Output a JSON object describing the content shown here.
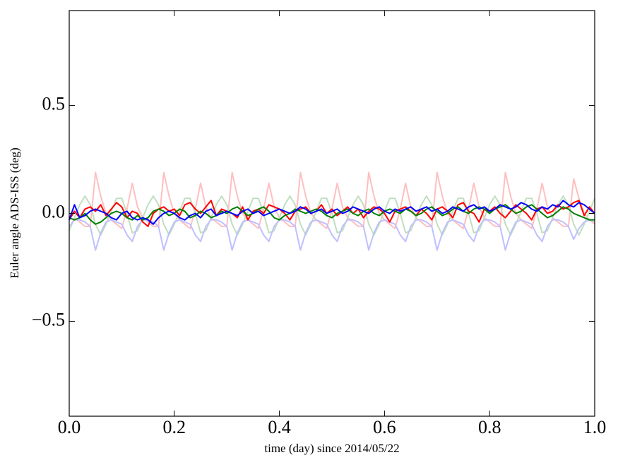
{
  "chart_data": {
    "type": "line",
    "xlabel": "time (day) since 2014/05/22",
    "ylabel": "Euler angle ADS-ISS (deg)",
    "xlim": [
      0,
      1
    ],
    "ylim": [
      -0.94,
      0.94
    ],
    "xticks": [
      {
        "value": 0,
        "label": "0.0"
      },
      0.2,
      0.4,
      0.6,
      0.8,
      {
        "value": 1,
        "label": "1.0"
      }
    ],
    "yticks": [
      {
        "value": -0.5,
        "label": "−0.5"
      },
      {
        "value": 0,
        "label": "0.0"
      },
      0.5
    ],
    "grid": false,
    "x": [
      0,
      0.01,
      0.02,
      0.03,
      0.04,
      0.05,
      0.06,
      0.07,
      0.08,
      0.09,
      0.1,
      0.11,
      0.12,
      0.13,
      0.14,
      0.15,
      0.16,
      0.17,
      0.18,
      0.19,
      0.2,
      0.21,
      0.22,
      0.23,
      0.24,
      0.25,
      0.26,
      0.27,
      0.28,
      0.29,
      0.3,
      0.31,
      0.32,
      0.33,
      0.34,
      0.35,
      0.36,
      0.37,
      0.38,
      0.39,
      0.4,
      0.41,
      0.42,
      0.43,
      0.44,
      0.45,
      0.46,
      0.47,
      0.48,
      0.49,
      0.5,
      0.51,
      0.52,
      0.53,
      0.54,
      0.55,
      0.56,
      0.57,
      0.58,
      0.59,
      0.6,
      0.61,
      0.62,
      0.63,
      0.64,
      0.65,
      0.66,
      0.67,
      0.68,
      0.69,
      0.7,
      0.71,
      0.72,
      0.73,
      0.74,
      0.75,
      0.76,
      0.77,
      0.78,
      0.79,
      0.8,
      0.81,
      0.82,
      0.83,
      0.84,
      0.85,
      0.86,
      0.87,
      0.88,
      0.89,
      0.9,
      0.91,
      0.92,
      0.93,
      0.94,
      0.95,
      0.96,
      0.97,
      0.98,
      0.99,
      1
    ],
    "series": [
      {
        "color": "#ffbfbf",
        "values": [
          -0.08,
          -0.02,
          -0.04,
          -0.06,
          -0.06,
          0.19,
          0.08,
          0.0,
          -0.03,
          -0.05,
          -0.07,
          0.02,
          0.14,
          0.03,
          -0.02,
          -0.04,
          -0.06,
          -0.06,
          0.19,
          0.08,
          0.0,
          -0.03,
          -0.05,
          -0.07,
          0.02,
          0.14,
          0.03,
          -0.02,
          -0.04,
          -0.06,
          -0.06,
          0.19,
          0.08,
          0.0,
          -0.03,
          -0.05,
          -0.07,
          0.02,
          0.14,
          0.03,
          -0.02,
          -0.04,
          -0.06,
          -0.06,
          0.19,
          0.08,
          0.0,
          -0.03,
          -0.05,
          -0.07,
          0.02,
          0.14,
          0.03,
          -0.02,
          -0.04,
          -0.06,
          -0.06,
          0.19,
          0.08,
          0.0,
          -0.03,
          -0.05,
          -0.07,
          0.02,
          0.14,
          0.03,
          -0.02,
          -0.04,
          -0.06,
          -0.06,
          0.19,
          0.08,
          0.0,
          -0.03,
          -0.05,
          -0.07,
          0.02,
          0.14,
          0.03,
          -0.02,
          -0.04,
          -0.06,
          -0.06,
          0.19,
          0.08,
          0.0,
          -0.03,
          -0.05,
          -0.07,
          0.02,
          0.14,
          0.03,
          -0.02,
          -0.04,
          -0.06,
          -0.06,
          0.16,
          0.07,
          0.0,
          -0.03,
          -0.05
        ]
      },
      {
        "color": "#bfdfbf",
        "values": [
          -0.08,
          -0.02,
          0.04,
          0.08,
          0.04,
          -0.05,
          -0.1,
          -0.05,
          0.01,
          0.07,
          0.07,
          0.0,
          -0.09,
          -0.08,
          -0.02,
          0.04,
          0.08,
          0.04,
          -0.05,
          -0.1,
          -0.05,
          0.01,
          0.07,
          0.07,
          0.0,
          -0.09,
          -0.08,
          -0.02,
          0.04,
          0.08,
          0.04,
          -0.05,
          -0.1,
          -0.05,
          0.01,
          0.07,
          0.07,
          0.0,
          -0.09,
          -0.08,
          -0.02,
          0.04,
          0.08,
          0.04,
          -0.05,
          -0.1,
          -0.05,
          0.01,
          0.07,
          0.07,
          0.0,
          -0.09,
          -0.08,
          -0.02,
          0.04,
          0.08,
          0.04,
          -0.05,
          -0.1,
          -0.05,
          0.01,
          0.07,
          0.07,
          0.0,
          -0.09,
          -0.08,
          -0.02,
          0.04,
          0.08,
          0.04,
          -0.05,
          -0.1,
          -0.05,
          0.01,
          0.07,
          0.07,
          0.0,
          -0.09,
          -0.08,
          -0.02,
          0.04,
          0.08,
          0.04,
          -0.05,
          -0.1,
          -0.05,
          0.01,
          0.07,
          0.07,
          0.0,
          -0.09,
          -0.08,
          -0.02,
          0.04,
          0.08,
          0.04,
          -0.05,
          -0.1,
          -0.05,
          0.01,
          0.07
        ]
      },
      {
        "color": "#bfbfff",
        "values": [
          -0.06,
          -0.03,
          -0.03,
          -0.04,
          -0.06,
          -0.17,
          -0.09,
          -0.04,
          -0.03,
          -0.04,
          -0.05,
          -0.1,
          -0.13,
          -0.06,
          -0.03,
          -0.03,
          -0.04,
          -0.06,
          -0.17,
          -0.09,
          -0.04,
          -0.03,
          -0.04,
          -0.05,
          -0.1,
          -0.13,
          -0.06,
          -0.03,
          -0.03,
          -0.04,
          -0.06,
          -0.17,
          -0.09,
          -0.04,
          -0.03,
          -0.04,
          -0.05,
          -0.1,
          -0.13,
          -0.06,
          -0.03,
          -0.03,
          -0.04,
          -0.06,
          -0.17,
          -0.09,
          -0.04,
          -0.03,
          -0.04,
          -0.05,
          -0.1,
          -0.13,
          -0.06,
          -0.03,
          -0.03,
          -0.04,
          -0.06,
          -0.17,
          -0.09,
          -0.04,
          -0.03,
          -0.04,
          -0.05,
          -0.1,
          -0.13,
          -0.06,
          -0.03,
          -0.03,
          -0.04,
          -0.06,
          -0.17,
          -0.09,
          -0.04,
          -0.03,
          -0.04,
          -0.05,
          -0.1,
          -0.13,
          -0.06,
          -0.03,
          -0.03,
          -0.04,
          -0.06,
          -0.17,
          -0.09,
          -0.04,
          -0.03,
          -0.04,
          -0.05,
          -0.1,
          -0.13,
          -0.06,
          -0.03,
          -0.03,
          -0.04,
          -0.06,
          -0.12,
          -0.07,
          -0.04,
          -0.03,
          -0.04
        ]
      },
      {
        "color": "#ff0000",
        "values": [
          -0.03,
          0.01,
          -0.02,
          0.02,
          0.03,
          0.01,
          0.04,
          -0.01,
          0.02,
          0.05,
          0.03,
          -0.02,
          0.01,
          0.0,
          -0.04,
          -0.06,
          0.0,
          0.02,
          0.03,
          0.01,
          0.02,
          -0.01,
          0.04,
          0.05,
          0.02,
          0.0,
          0.03,
          0.06,
          -0.01,
          0.02,
          0.01,
          0.0,
          -0.02,
          0.03,
          -0.03,
          0.01,
          0.02,
          0.0,
          0.04,
          0.03,
          0.02,
          0.0,
          -0.03,
          0.01,
          0.02,
          0.03,
          0.0,
          0.01,
          0.04,
          0.0,
          0.02,
          -0.01,
          0.01,
          0.03,
          0.0,
          0.02,
          -0.02,
          0.01,
          0.03,
          0.02,
          0.0,
          -0.04,
          0.01,
          0.02,
          0.03,
          0.01,
          -0.01,
          0.02,
          0.0,
          -0.03,
          0.02,
          0.03,
          0.01,
          -0.02,
          0.04,
          0.05,
          0.01,
          0.0,
          -0.04,
          0.02,
          0.01,
          0.03,
          0.0,
          -0.02,
          0.01,
          0.04,
          0.02,
          0.0,
          -0.03,
          0.02,
          0.03,
          0.0,
          0.01,
          0.04,
          0.02,
          0.03,
          0.05,
          0.06,
          -0.01,
          0.03,
          0.0
        ]
      },
      {
        "color": "#008000",
        "values": [
          -0.02,
          -0.03,
          -0.02,
          0.0,
          -0.03,
          -0.05,
          -0.04,
          -0.02,
          0.0,
          0.01,
          0.0,
          -0.02,
          -0.03,
          -0.01,
          -0.03,
          -0.02,
          0.01,
          0.02,
          0.01,
          -0.01,
          0.0,
          0.02,
          0.01,
          -0.02,
          -0.01,
          0.01,
          0.0,
          -0.02,
          -0.01,
          0.01,
          0.0,
          0.02,
          0.03,
          0.01,
          -0.01,
          0.0,
          0.02,
          0.03,
          0.01,
          -0.02,
          -0.03,
          -0.01,
          0.0,
          0.02,
          0.01,
          0.0,
          0.01,
          0.02,
          0.01,
          -0.01,
          -0.02,
          0.0,
          0.01,
          0.02,
          0.0,
          -0.01,
          0.01,
          0.02,
          0.0,
          -0.01,
          0.01,
          0.02,
          0.01,
          0.0,
          0.02,
          0.01,
          -0.01,
          0.0,
          0.02,
          0.03,
          0.01,
          -0.01,
          0.0,
          0.02,
          0.03,
          0.01,
          0.0,
          0.02,
          0.03,
          0.02,
          0.0,
          0.02,
          0.03,
          0.04,
          0.02,
          0.0,
          0.01,
          0.03,
          0.04,
          0.02,
          0.0,
          -0.02,
          -0.01,
          0.01,
          0.03,
          0.02,
          0.0,
          -0.01,
          -0.02,
          -0.03,
          -0.03
        ]
      },
      {
        "color": "#0000ff",
        "values": [
          -0.03,
          0.04,
          -0.02,
          -0.01,
          0.01,
          0.02,
          0.01,
          0.0,
          -0.02,
          -0.03,
          0.0,
          0.01,
          -0.02,
          -0.03,
          -0.02,
          -0.03,
          -0.05,
          -0.02,
          0.0,
          0.01,
          0.0,
          -0.02,
          -0.03,
          -0.01,
          0.0,
          -0.02,
          0.01,
          0.02,
          -0.01,
          0.0,
          0.01,
          0.0,
          -0.01,
          0.01,
          0.02,
          0.0,
          0.01,
          -0.01,
          0.0,
          0.01,
          0.02,
          0.01,
          0.0,
          0.01,
          0.03,
          0.02,
          0.0,
          0.01,
          0.02,
          0.0,
          0.01,
          0.02,
          0.0,
          0.01,
          0.03,
          0.02,
          0.01,
          0.0,
          0.02,
          0.03,
          0.01,
          0.0,
          0.02,
          0.01,
          0.02,
          0.03,
          0.01,
          0.02,
          0.03,
          0.01,
          0.02,
          0.0,
          0.01,
          0.03,
          0.02,
          0.01,
          0.03,
          0.04,
          0.02,
          0.03,
          0.01,
          0.02,
          0.04,
          0.03,
          0.02,
          0.03,
          0.05,
          0.04,
          0.02,
          0.01,
          0.03,
          0.02,
          0.04,
          0.03,
          0.06,
          0.04,
          0.03,
          0.05,
          0.04,
          0.02,
          0.0
        ]
      }
    ]
  }
}
